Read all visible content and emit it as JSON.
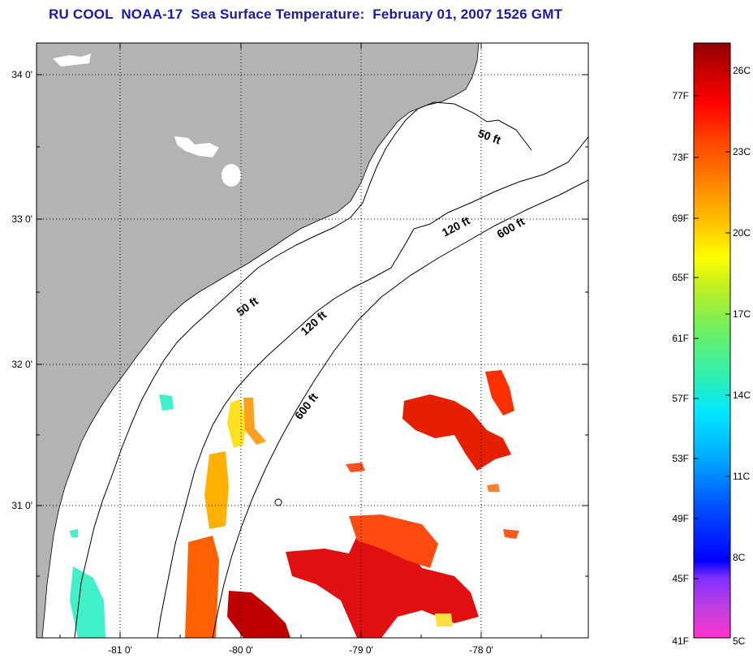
{
  "title": "RU COOL  NOAA-17  Sea Surface Temperature:  February 01, 2007 1526 GMT",
  "map": {
    "lat_ticks": [
      "34 0'",
      "33 0'",
      "32 0'",
      "31 0'"
    ],
    "lon_ticks": [
      "-81 0'",
      "-80 0'",
      "-79 0'",
      "-78 0'"
    ],
    "contours": [
      {
        "label": "50 ft"
      },
      {
        "label": "120 ft"
      },
      {
        "label": "600 ft"
      },
      {
        "label": "50 ft"
      },
      {
        "label": "120 ft"
      },
      {
        "label": "600 ft"
      }
    ],
    "colors": {
      "land": "#b3b3b3",
      "frame": "#000000",
      "grid": "#000000"
    }
  },
  "colorbar": {
    "fahrenheit": [
      "77F",
      "73F",
      "69F",
      "65F",
      "61F",
      "57F",
      "53F",
      "49F",
      "45F",
      "41F"
    ],
    "celsius": [
      "26C",
      "23C",
      "20C",
      "17C",
      "14C",
      "11C",
      "8C",
      "5C"
    ],
    "colors": [
      "#ff33cc",
      "#b040e0",
      "#7000ff",
      "#0000ff",
      "#0055ff",
      "#00aaff",
      "#00e6ff",
      "#20f0c0",
      "#40f080",
      "#80f040",
      "#c0f030",
      "#ffff00",
      "#ffd000",
      "#ffa000",
      "#ff7000",
      "#ff4000",
      "#ff0000",
      "#d00000",
      "#900000"
    ]
  }
}
